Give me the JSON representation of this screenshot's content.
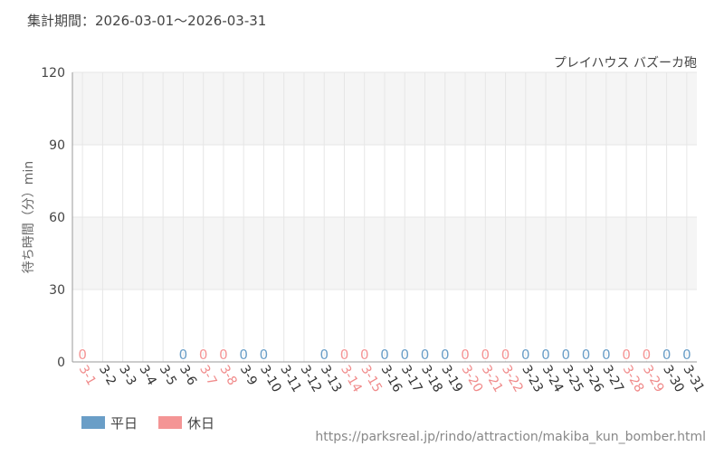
{
  "chart_data": {
    "type": "bar",
    "title": "集計期間：2026-03-01～2026-03-31",
    "subtitle": "プレイハウス バズーカ砲",
    "y_label": "待ち時間（分）min",
    "source": "https://parksreal.jp/rindo/attraction/makiba_kun_bomber.html",
    "categories": [
      "3-1",
      "3-2",
      "3-3",
      "3-4",
      "3-5",
      "3-6",
      "3-7",
      "3-8",
      "3-9",
      "3-10",
      "3-11",
      "3-12",
      "3-13",
      "3-14",
      "3-15",
      "3-16",
      "3-17",
      "3-18",
      "3-19",
      "3-20",
      "3-21",
      "3-22",
      "3-23",
      "3-24",
      "3-25",
      "3-26",
      "3-27",
      "3-28",
      "3-29",
      "3-30",
      "3-31"
    ],
    "category_colors": [
      "#f08a8a",
      "#333333",
      "#333333",
      "#333333",
      "#333333",
      "#333333",
      "#f08a8a",
      "#f08a8a",
      "#333333",
      "#333333",
      "#333333",
      "#333333",
      "#333333",
      "#f08a8a",
      "#f08a8a",
      "#333333",
      "#333333",
      "#333333",
      "#333333",
      "#f08a8a",
      "#f08a8a",
      "#f08a8a",
      "#333333",
      "#333333",
      "#333333",
      "#333333",
      "#333333",
      "#f08a8a",
      "#f08a8a",
      "#333333",
      "#333333"
    ],
    "series": [
      {
        "name": "平日",
        "color": "#6a9ec7",
        "values": [
          null,
          null,
          null,
          null,
          null,
          0,
          null,
          null,
          0,
          0,
          null,
          null,
          0,
          null,
          null,
          0,
          0,
          0,
          0,
          null,
          null,
          null,
          0,
          0,
          0,
          0,
          0,
          null,
          null,
          0,
          0
        ]
      },
      {
        "name": "休日",
        "color": "#f49595",
        "values": [
          0,
          null,
          null,
          null,
          null,
          null,
          0,
          0,
          null,
          null,
          null,
          null,
          null,
          0,
          0,
          null,
          null,
          null,
          null,
          0,
          0,
          0,
          null,
          null,
          null,
          null,
          null,
          0,
          0,
          null,
          null
        ]
      }
    ],
    "ylim": [
      0,
      120
    ],
    "yticks": [
      0,
      30,
      60,
      90,
      120
    ],
    "grid": true
  }
}
